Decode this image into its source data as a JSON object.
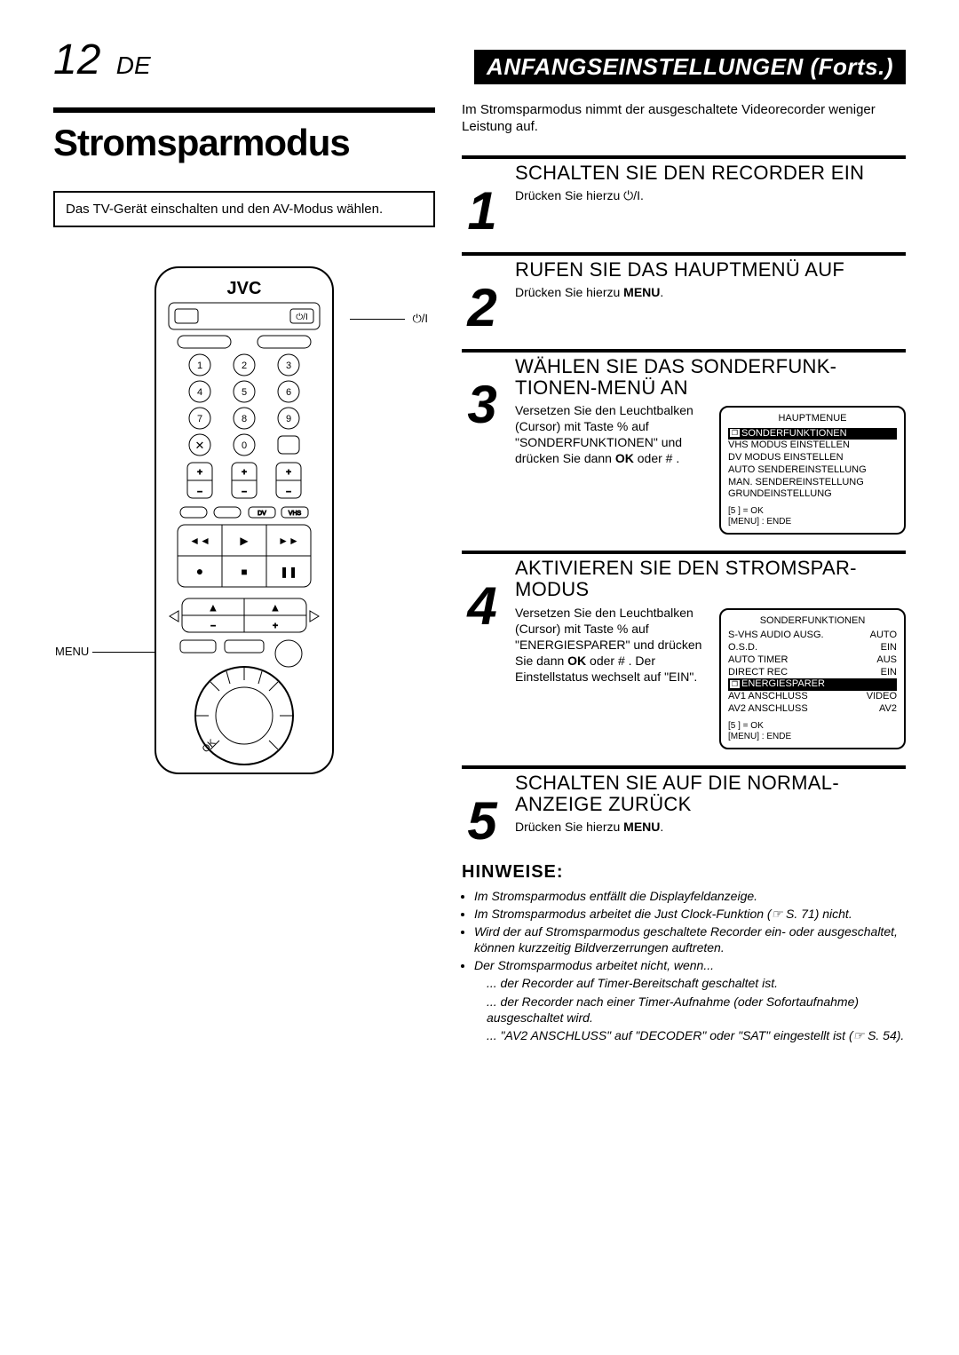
{
  "page_number": "12",
  "page_lang": "DE",
  "section_banner": "ANFANGSEINSTELLUNGEN (Forts.)",
  "main_title": "Stromsparmodus",
  "note_box": "Das TV-Gerät einschalten und den AV-Modus wählen.",
  "remote": {
    "brand": "JVC",
    "label_power": "⏻/I",
    "label_menu": "MENU",
    "label_ok": "OK"
  },
  "intro": "Im Stromsparmodus nimmt der ausgeschaltete Videorecorder weniger Leistung auf.",
  "steps": [
    {
      "num": "1",
      "title": "SCHALTEN SIE DEN RECORDER EIN",
      "text": "Drücken Sie hierzu ⏻/I."
    },
    {
      "num": "2",
      "title": "RUFEN SIE DAS HAUPTMENÜ AUF",
      "text": "Drücken Sie hierzu <b>MENU</b>."
    },
    {
      "num": "3",
      "title": "WÄHLEN SIE DAS SONDERFUNK-\nTIONEN-MENÜ AN",
      "text": "Versetzen Sie den Leuchtbalken (Cursor) mit Taste %  auf \"SONDERFUNKTIONEN\" und drücken Sie dann <b>OK</b> oder # .",
      "osd": {
        "title": "HAUPTMENUE",
        "rows": [
          {
            "label": "SONDERFUNKTIONEN",
            "hl": true,
            "icon": true
          },
          {
            "label": "VHS MODUS EINSTELLEN"
          },
          {
            "label": "DV MODUS EINSTELLEN"
          },
          {
            "label": "AUTO SENDEREINSTELLUNG"
          },
          {
            "label": "MAN. SENDEREINSTELLUNG"
          },
          {
            "label": "GRUNDEINSTELLUNG"
          }
        ],
        "footer1": "[5     ]  =  OK",
        "footer2": "[MENU] : ENDE"
      }
    },
    {
      "num": "4",
      "title": "AKTIVIEREN SIE DEN STROMSPAR-\nMODUS",
      "text": "Versetzen Sie den Leuchtbalken (Cursor) mit Taste %  auf \"ENERGIESPARER\" und drücken Sie dann <b>OK</b> oder # . Der Einstellstatus wechselt auf \"EIN\".",
      "osd": {
        "title": "SONDERFUNKTIONEN",
        "rows": [
          {
            "label": "S-VHS AUDIO AUSG.",
            "value": "AUTO"
          },
          {
            "label": "O.S.D.",
            "value": "EIN"
          },
          {
            "label": "AUTO TIMER",
            "value": "AUS"
          },
          {
            "label": "DIRECT REC",
            "value": "EIN"
          },
          {
            "label": "ENERGIESPARER",
            "value": " ",
            "hl": true,
            "icon": true
          },
          {
            "label": "AV1 ANSCHLUSS",
            "value": "VIDEO"
          },
          {
            "label": "AV2 ANSCHLUSS",
            "value": "AV2"
          }
        ],
        "footer1": "[5     ]  =  OK",
        "footer2": "[MENU] : ENDE"
      }
    },
    {
      "num": "5",
      "title": "SCHALTEN SIE AUF DIE NORMAL-\nANZEIGE ZURÜCK",
      "text": "Drücken Sie hierzu <b>MENU</b>."
    }
  ],
  "hinweise": {
    "title": "HINWEISE:",
    "items": [
      "Im Stromsparmodus entfällt die  Displayfeldanzeige.",
      "Im Stromsparmodus arbeitet die Just Clock-Funktion (☞ S. 71) nicht.",
      "Wird der auf Stromsparmodus geschaltete Recorder ein- oder ausgeschaltet, können kurzzeitig Bildverzerrungen auftreten.",
      "Der Stromsparmodus arbeitet nicht, wenn..."
    ],
    "subitems": [
      "... der Recorder auf Timer-Bereitschaft geschaltet ist.",
      "... der Recorder nach einer Timer-Aufnahme (oder Sofortaufnahme) ausgeschaltet wird.",
      "... \"AV2 ANSCHLUSS\" auf \"DECODER\" oder \"SAT\" eingestellt ist (☞ S. 54)."
    ]
  }
}
